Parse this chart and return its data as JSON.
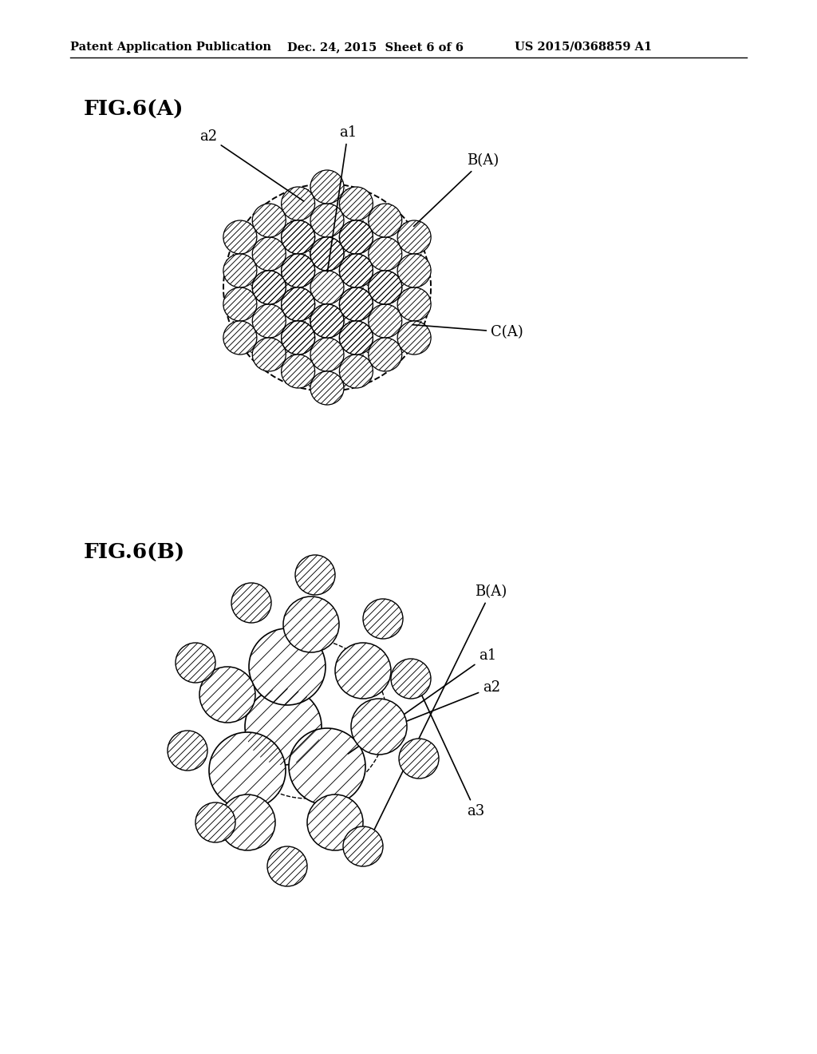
{
  "header_left": "Patent Application Publication",
  "header_mid": "Dec. 24, 2015  Sheet 6 of 6",
  "header_right": "US 2015/0368859 A1",
  "fig_a_label": "FIG.6(A)",
  "fig_b_label": "FIG.6(B)",
  "background": "#ffffff"
}
